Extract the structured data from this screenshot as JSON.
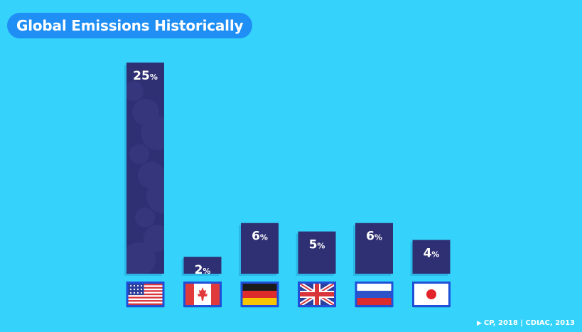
{
  "title": "Global Emissions Historically",
  "source": "CP, 2018 | CDIAC, 2013",
  "chart_data": {
    "type": "bar",
    "title": "Global Emissions Historically",
    "categories": [
      "United States",
      "Canada",
      "Germany",
      "United Kingdom",
      "Russia",
      "Japan"
    ],
    "values": [
      25,
      2,
      6,
      5,
      6,
      4
    ],
    "labels": [
      "25%",
      "2%",
      "6%",
      "5%",
      "6%",
      "4%"
    ],
    "flags": [
      "us-flag-icon",
      "canada-flag-icon",
      "germany-flag-icon",
      "uk-flag-icon",
      "russia-flag-icon",
      "japan-flag-icon"
    ],
    "ylim": [
      0,
      25
    ],
    "grid": false,
    "legend": "none",
    "colors": {
      "background": "#35d3fb",
      "bar": "#2f2f73",
      "bar_highlight": "#3c3c86",
      "title_pill": "#1f8ef5",
      "label": "#ffffff"
    }
  }
}
